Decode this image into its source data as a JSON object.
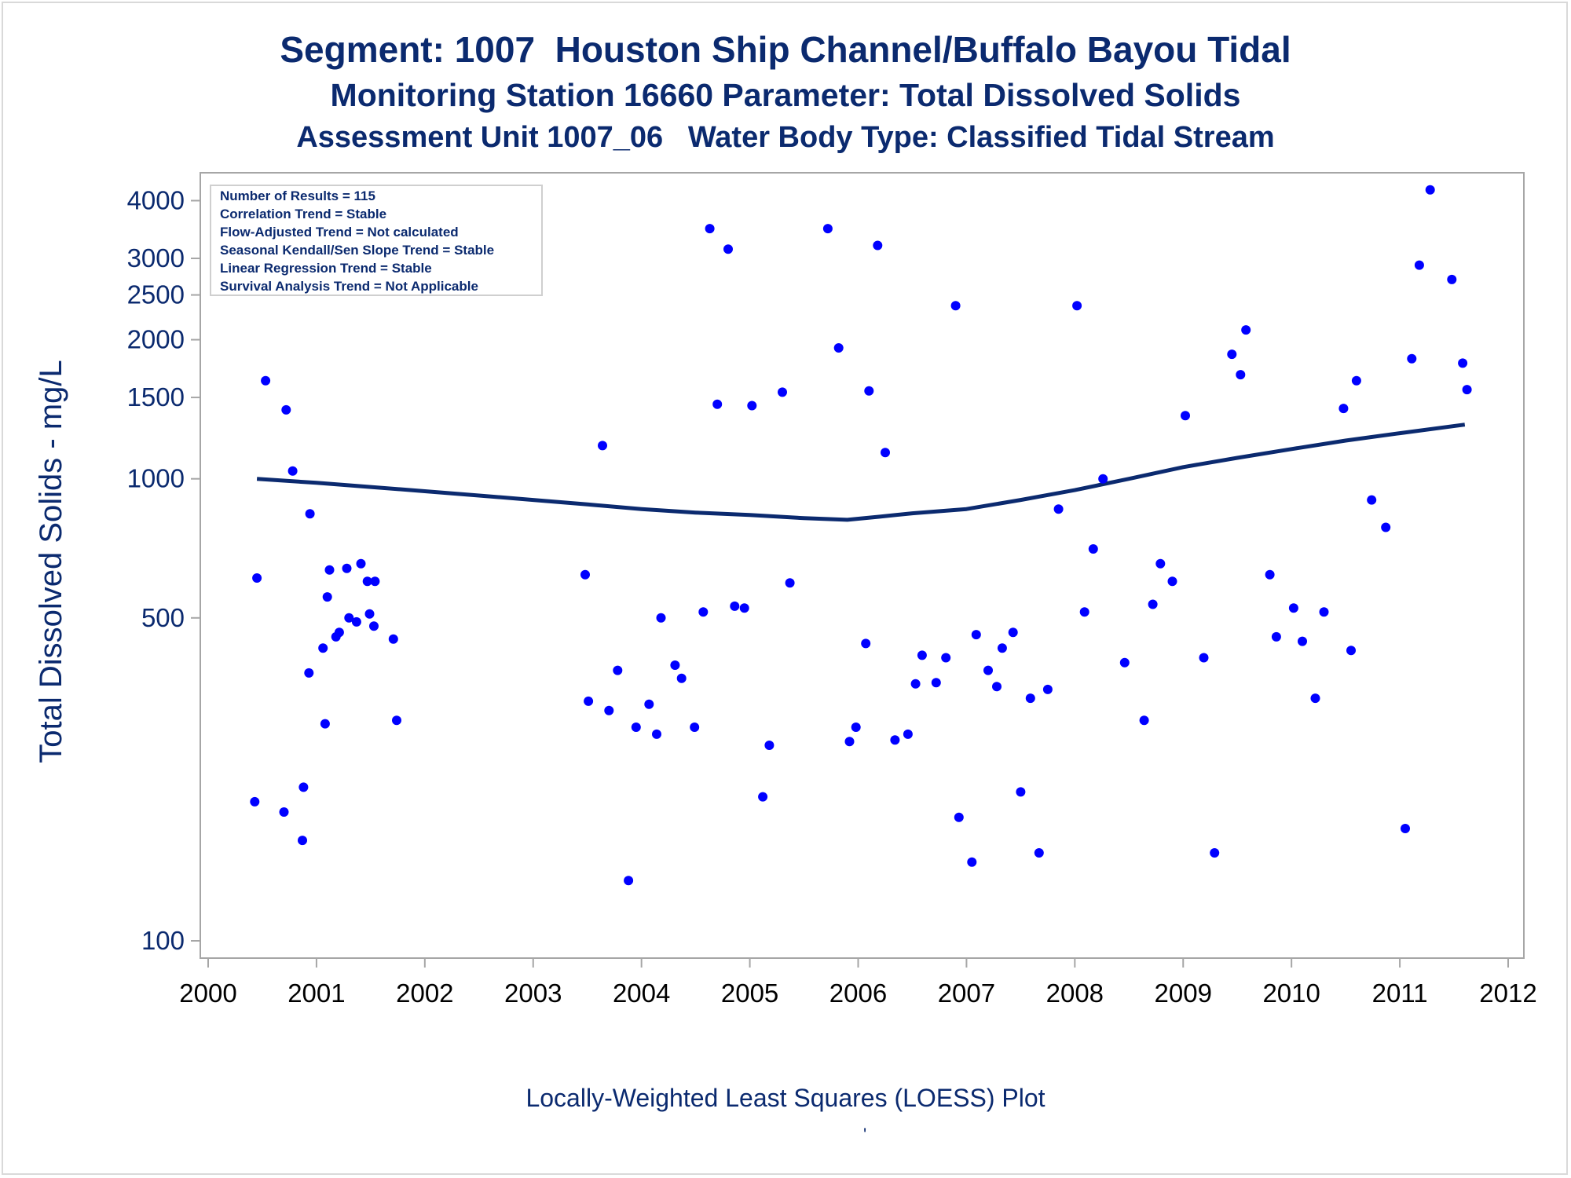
{
  "titles": {
    "line1": "Segment: 1007  Houston Ship Channel/Buffalo Bayou Tidal",
    "line2": "Monitoring Station 16660 Parameter: Total Dissolved Solids",
    "line3": "Assessment Unit 1007_06   Water Body Type: Classified Tidal Stream"
  },
  "info_box": [
    "Number of Results = 115",
    "Correlation Trend = Stable",
    "Flow-Adjusted Trend = Not calculated",
    "Seasonal Kendall/Sen Slope Trend = Stable",
    "Linear Regression Trend = Stable",
    "Survival Analysis Trend = Not Applicable"
  ],
  "footer": "Locally-Weighted Least Squares (LOESS) Plot",
  "footer_mark": "'",
  "colors": {
    "points": "#0000ff",
    "loess_line": "#0b2a6f",
    "text": "#0b2a6f",
    "axis": "#a6a6a6"
  },
  "chart_data": {
    "type": "scatter",
    "ylabel": "Total Dissolved Solids - mg/L",
    "xlabel": "",
    "y_scale": "log",
    "xlim": [
      2000,
      2012
    ],
    "ylim": [
      100,
      4300
    ],
    "x_ticks": [
      2000,
      2001,
      2002,
      2003,
      2004,
      2005,
      2006,
      2007,
      2008,
      2009,
      2010,
      2011,
      2012
    ],
    "y_ticks": [
      100,
      500,
      1000,
      1500,
      2000,
      2500,
      3000,
      4000
    ],
    "legend": "none",
    "grid": false,
    "series": [
      {
        "kind": "points",
        "points": [
          [
            2000.43,
            200
          ],
          [
            2000.45,
            610
          ],
          [
            2000.53,
            1630
          ],
          [
            2000.54,
            3450
          ],
          [
            2000.6,
            2780
          ],
          [
            2000.62,
            2570
          ],
          [
            2000.7,
            190
          ],
          [
            2000.72,
            1410
          ],
          [
            2000.76,
            3830
          ],
          [
            2000.78,
            1040
          ],
          [
            2000.87,
            165
          ],
          [
            2000.88,
            215
          ],
          [
            2000.93,
            380
          ],
          [
            2000.94,
            840
          ],
          [
            2001.06,
            430
          ],
          [
            2001.08,
            295
          ],
          [
            2001.1,
            555
          ],
          [
            2001.12,
            635
          ],
          [
            2001.18,
            455
          ],
          [
            2001.21,
            465
          ],
          [
            2001.28,
            640
          ],
          [
            2001.3,
            500
          ],
          [
            2001.37,
            490
          ],
          [
            2001.41,
            655
          ],
          [
            2001.47,
            600
          ],
          [
            2001.49,
            510
          ],
          [
            2001.53,
            480
          ],
          [
            2001.54,
            600
          ],
          [
            2001.62,
            2980
          ],
          [
            2001.71,
            450
          ],
          [
            2001.74,
            300
          ],
          [
            2003.48,
            620
          ],
          [
            2003.51,
            330
          ],
          [
            2003.64,
            1180
          ],
          [
            2003.7,
            315
          ],
          [
            2003.78,
            385
          ],
          [
            2003.88,
            135
          ],
          [
            2003.95,
            290
          ],
          [
            2004.07,
            325
          ],
          [
            2004.14,
            280
          ],
          [
            2004.18,
            500
          ],
          [
            2004.31,
            395
          ],
          [
            2004.37,
            370
          ],
          [
            2004.49,
            290
          ],
          [
            2004.57,
            515
          ],
          [
            2004.63,
            3480
          ],
          [
            2004.7,
            1450
          ],
          [
            2004.8,
            3140
          ],
          [
            2004.86,
            530
          ],
          [
            2004.95,
            525
          ],
          [
            2005.02,
            1440
          ],
          [
            2005.12,
            205
          ],
          [
            2005.18,
            265
          ],
          [
            2005.3,
            1540
          ],
          [
            2005.37,
            595
          ],
          [
            2005.72,
            3480
          ],
          [
            2005.82,
            1920
          ],
          [
            2005.92,
            270
          ],
          [
            2005.98,
            290
          ],
          [
            2006.07,
            440
          ],
          [
            2006.1,
            1550
          ],
          [
            2006.18,
            3200
          ],
          [
            2006.25,
            1140
          ],
          [
            2006.34,
            272
          ],
          [
            2006.46,
            280
          ],
          [
            2006.53,
            360
          ],
          [
            2006.59,
            415
          ],
          [
            2006.72,
            362
          ],
          [
            2006.81,
            410
          ],
          [
            2006.9,
            2370
          ],
          [
            2006.93,
            185
          ],
          [
            2007.05,
            148
          ],
          [
            2007.09,
            460
          ],
          [
            2007.2,
            385
          ],
          [
            2007.28,
            355
          ],
          [
            2007.33,
            430
          ],
          [
            2007.43,
            465
          ],
          [
            2007.5,
            210
          ],
          [
            2007.59,
            335
          ],
          [
            2007.67,
            155
          ],
          [
            2007.75,
            350
          ],
          [
            2007.85,
            860
          ],
          [
            2008.02,
            2370
          ],
          [
            2008.09,
            515
          ],
          [
            2008.17,
            705
          ],
          [
            2008.26,
            1000
          ],
          [
            2008.46,
            400
          ],
          [
            2008.64,
            300
          ],
          [
            2008.72,
            535
          ],
          [
            2008.79,
            655
          ],
          [
            2008.9,
            600
          ],
          [
            2009.02,
            1370
          ],
          [
            2009.19,
            410
          ],
          [
            2009.29,
            155
          ],
          [
            2009.45,
            1860
          ],
          [
            2009.53,
            1680
          ],
          [
            2009.58,
            2100
          ],
          [
            2009.8,
            620
          ],
          [
            2009.86,
            455
          ],
          [
            2010.02,
            525
          ],
          [
            2010.1,
            445
          ],
          [
            2010.22,
            335
          ],
          [
            2010.3,
            515
          ],
          [
            2010.55,
            425
          ],
          [
            2010.6,
            1630
          ],
          [
            2010.48,
            1420
          ],
          [
            2010.74,
            900
          ],
          [
            2010.87,
            785
          ],
          [
            2011.05,
            175
          ],
          [
            2011.11,
            1820
          ],
          [
            2011.18,
            2900
          ],
          [
            2011.28,
            4220
          ],
          [
            2011.48,
            2700
          ],
          [
            2011.58,
            1780
          ],
          [
            2011.62,
            1560
          ]
        ]
      },
      {
        "kind": "loess",
        "points": [
          [
            2000.45,
            1000
          ],
          [
            2001.0,
            980
          ],
          [
            2001.5,
            960
          ],
          [
            2002.0,
            940
          ],
          [
            2002.5,
            920
          ],
          [
            2003.0,
            900
          ],
          [
            2003.5,
            880
          ],
          [
            2004.0,
            860
          ],
          [
            2004.5,
            845
          ],
          [
            2005.0,
            835
          ],
          [
            2005.5,
            822
          ],
          [
            2005.9,
            815
          ],
          [
            2006.2,
            828
          ],
          [
            2006.5,
            842
          ],
          [
            2007.0,
            860
          ],
          [
            2007.5,
            900
          ],
          [
            2008.0,
            945
          ],
          [
            2008.5,
            1000
          ],
          [
            2009.0,
            1060
          ],
          [
            2009.5,
            1110
          ],
          [
            2010.0,
            1160
          ],
          [
            2010.5,
            1210
          ],
          [
            2011.0,
            1255
          ],
          [
            2011.6,
            1310
          ]
        ]
      }
    ]
  }
}
